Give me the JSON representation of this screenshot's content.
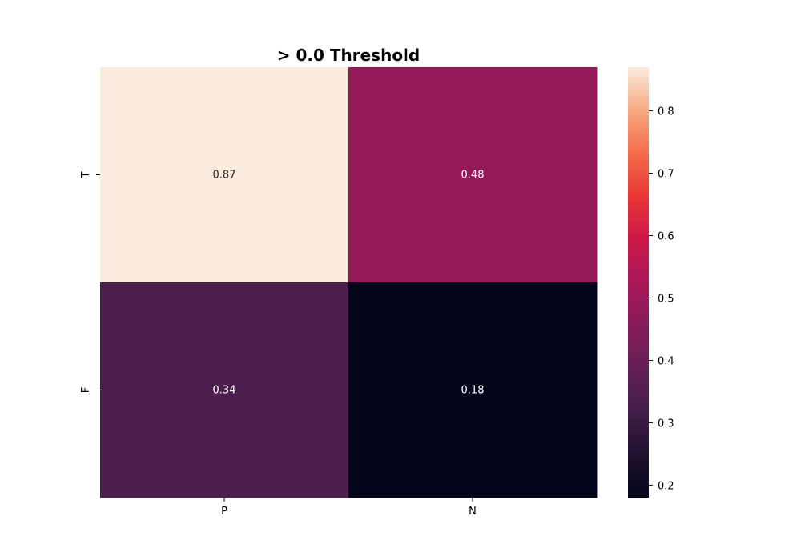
{
  "chart_data": {
    "type": "heatmap",
    "title": "> 0.0 Threshold",
    "x_categories": [
      "P",
      "N"
    ],
    "y_categories": [
      "T",
      "F"
    ],
    "values": [
      [
        0.87,
        0.48
      ],
      [
        0.34,
        0.18
      ]
    ],
    "value_labels": [
      [
        "0.87",
        "0.48"
      ],
      [
        "0.34",
        "0.18"
      ]
    ],
    "colorbar": {
      "vmin": 0.18,
      "vmax": 0.87,
      "ticks": [
        0.2,
        0.3,
        0.4,
        0.5,
        0.6,
        0.7,
        0.8
      ],
      "tick_labels": [
        "0.2",
        "0.3",
        "0.4",
        "0.5",
        "0.6",
        "0.7",
        "0.8"
      ]
    },
    "colormap": "rocket",
    "grid": false
  }
}
